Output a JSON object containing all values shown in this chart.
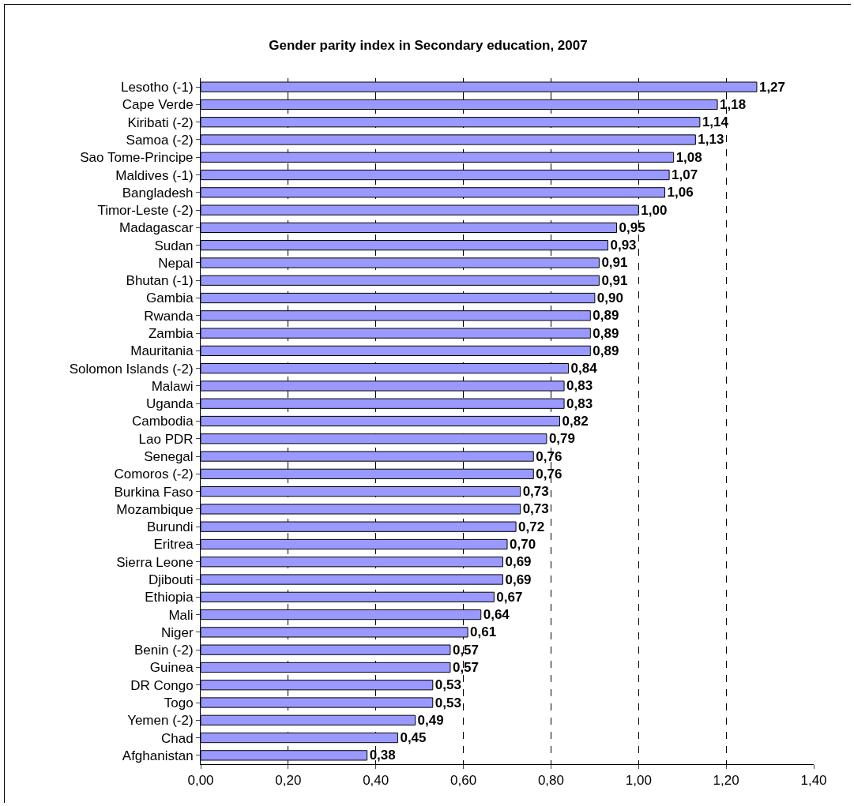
{
  "chart_data": {
    "type": "bar",
    "orientation": "horizontal",
    "title": "Gender parity index in Secondary education, 2007",
    "categories": [
      "Lesotho (-1)",
      "Cape Verde",
      "Kiribati (-2)",
      "Samoa (-2)",
      "Sao Tome-Principe",
      "Maldives (-1)",
      "Bangladesh",
      "Timor-Leste (-2)",
      "Madagascar",
      "Sudan",
      "Nepal",
      "Bhutan (-1)",
      "Gambia",
      "Rwanda",
      "Zambia",
      "Mauritania",
      "Solomon Islands (-2)",
      "Malawi",
      "Uganda",
      "Cambodia",
      "Lao PDR",
      "Senegal",
      "Comoros (-2)",
      "Burkina Faso",
      "Mozambique",
      "Burundi",
      "Eritrea",
      "Sierra Leone",
      "Djibouti",
      "Ethiopia",
      "Mali",
      "Niger",
      "Benin (-2)",
      "Guinea",
      "DR Congo",
      "Togo",
      "Yemen (-2)",
      "Chad",
      "Afghanistan"
    ],
    "values": [
      1.27,
      1.18,
      1.14,
      1.13,
      1.08,
      1.07,
      1.06,
      1.0,
      0.95,
      0.93,
      0.91,
      0.91,
      0.9,
      0.89,
      0.89,
      0.89,
      0.84,
      0.83,
      0.83,
      0.82,
      0.79,
      0.76,
      0.76,
      0.73,
      0.73,
      0.72,
      0.7,
      0.69,
      0.69,
      0.67,
      0.64,
      0.61,
      0.57,
      0.57,
      0.53,
      0.53,
      0.49,
      0.45,
      0.38
    ],
    "value_labels": [
      "1,27",
      "1,18",
      "1,14",
      "1,13",
      "1,08",
      "1,07",
      "1,06",
      "1,00",
      "0,95",
      "0,93",
      "0,91",
      "0,91",
      "0,90",
      "0,89",
      "0,89",
      "0,89",
      "0,84",
      "0,83",
      "0,83",
      "0,82",
      "0,79",
      "0,76",
      "0,76",
      "0,73",
      "0,73",
      "0,72",
      "0,70",
      "0,69",
      "0,69",
      "0,67",
      "0,64",
      "0,61",
      "0,57",
      "0,57",
      "0,53",
      "0,53",
      "0,49",
      "0,45",
      "0,38"
    ],
    "color": "#9999ff",
    "xlim": [
      0,
      1.4
    ],
    "xticks": [
      {
        "value": 0,
        "label": "0,00"
      },
      {
        "value": 0.2,
        "label": "0,20"
      },
      {
        "value": 0.4,
        "label": "0,40"
      },
      {
        "value": 0.6,
        "label": "0,60"
      },
      {
        "value": 0.8,
        "label": "0,80"
      },
      {
        "value": 1.0,
        "label": "1,00"
      },
      {
        "value": 1.2,
        "label": "1,20"
      },
      {
        "value": 1.4,
        "label": "1,40"
      }
    ],
    "grid": "x",
    "legend": false
  }
}
